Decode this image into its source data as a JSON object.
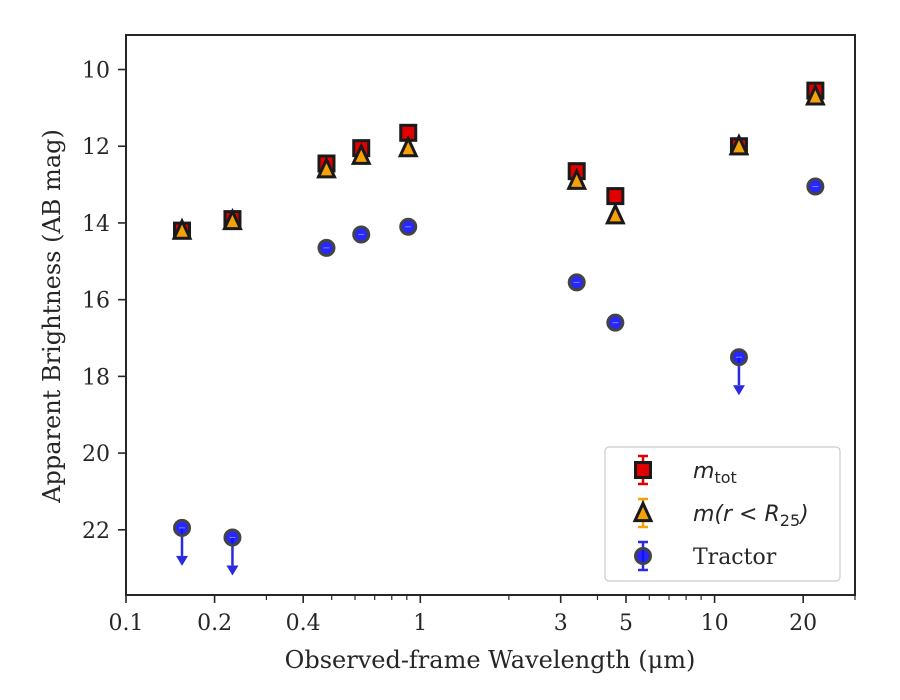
{
  "chart_data": {
    "type": "scatter",
    "xlabel": "Observed-frame Wavelength (μm)",
    "ylabel": "Apparent Brightness (AB mag)",
    "x_scale": "log",
    "y_inverted": true,
    "xlim": [
      0.1,
      30
    ],
    "ylim": [
      23.7,
      9.1
    ],
    "x_tick_labels": [
      "0.1",
      "0.2",
      "0.4",
      "1",
      "3",
      "5",
      "10",
      "20"
    ],
    "x_tick_values": [
      0.1,
      0.2,
      0.4,
      1,
      3,
      5,
      10,
      20
    ],
    "y_tick_values": [
      10,
      12,
      14,
      16,
      18,
      20,
      22
    ],
    "y_tick_labels": [
      "10",
      "12",
      "14",
      "16",
      "18",
      "20",
      "22"
    ],
    "grid": false,
    "legend_position": "lower-right",
    "series": [
      {
        "name": "m_tot",
        "legend_text": "m",
        "legend_subscript": "tot",
        "marker": "square",
        "color": "#e00000",
        "edge_color": "#1a1a1a",
        "points": [
          {
            "x": 0.155,
            "y": 14.2
          },
          {
            "x": 0.23,
            "y": 13.9
          },
          {
            "x": 0.48,
            "y": 12.45
          },
          {
            "x": 0.63,
            "y": 12.05
          },
          {
            "x": 0.91,
            "y": 11.65
          },
          {
            "x": 3.4,
            "y": 12.65
          },
          {
            "x": 4.6,
            "y": 13.3
          },
          {
            "x": 12.1,
            "y": 12.0
          },
          {
            "x": 22.0,
            "y": 10.55
          }
        ]
      },
      {
        "name": "m(r < R_25)",
        "legend_text": "m(r < R",
        "legend_subscript": "25",
        "legend_suffix": ")",
        "marker": "triangle",
        "color": "#f5a20a",
        "edge_color": "#1a1a1a",
        "points": [
          {
            "x": 0.155,
            "y": 14.2
          },
          {
            "x": 0.23,
            "y": 13.95
          },
          {
            "x": 0.48,
            "y": 12.6
          },
          {
            "x": 0.63,
            "y": 12.25
          },
          {
            "x": 0.91,
            "y": 12.05
          },
          {
            "x": 3.4,
            "y": 12.9
          },
          {
            "x": 4.6,
            "y": 13.8
          },
          {
            "x": 12.1,
            "y": 12.0
          },
          {
            "x": 22.0,
            "y": 10.7
          }
        ]
      },
      {
        "name": "Tractor",
        "legend_text": "Tractor",
        "marker": "circle",
        "color": "#1010ff",
        "edge_color": "#444444",
        "points": [
          {
            "x": 0.155,
            "y": 21.95,
            "upper_limit": true
          },
          {
            "x": 0.23,
            "y": 22.2,
            "upper_limit": true
          },
          {
            "x": 0.48,
            "y": 14.65
          },
          {
            "x": 0.63,
            "y": 14.3
          },
          {
            "x": 0.91,
            "y": 14.1
          },
          {
            "x": 3.4,
            "y": 15.55
          },
          {
            "x": 4.6,
            "y": 16.6
          },
          {
            "x": 12.1,
            "y": 17.5,
            "upper_limit": true
          },
          {
            "x": 22.0,
            "y": 13.05
          }
        ]
      }
    ]
  }
}
